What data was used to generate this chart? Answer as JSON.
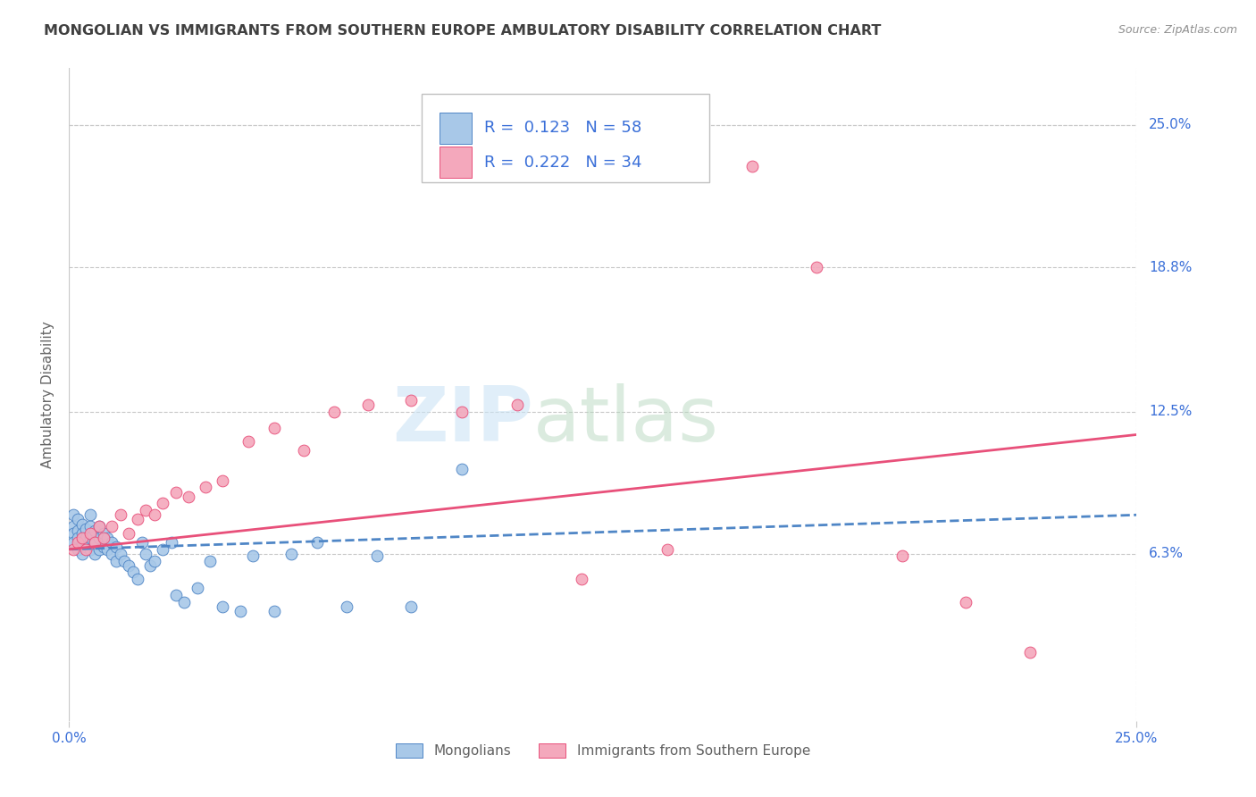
{
  "title": "MONGOLIAN VS IMMIGRANTS FROM SOUTHERN EUROPE AMBULATORY DISABILITY CORRELATION CHART",
  "source": "Source: ZipAtlas.com",
  "ylabel": "Ambulatory Disability",
  "ytick_labels": [
    "6.3%",
    "12.5%",
    "18.8%",
    "25.0%"
  ],
  "ytick_values": [
    0.063,
    0.125,
    0.188,
    0.25
  ],
  "xlim": [
    0.0,
    0.25
  ],
  "ylim": [
    -0.01,
    0.275
  ],
  "legend_label1": "Mongolians",
  "legend_label2": "Immigrants from Southern Europe",
  "R1": "0.123",
  "N1": "58",
  "R2": "0.222",
  "N2": "34",
  "color1": "#a8c8e8",
  "color2": "#f4a8bc",
  "line_color1": "#4f86c6",
  "line_color2": "#e8507a",
  "background_color": "#ffffff",
  "grid_color": "#c8c8c8",
  "title_color": "#404040",
  "source_color": "#909090",
  "label_color": "#3a6fd8",
  "mongolian_x": [
    0.001,
    0.001,
    0.001,
    0.001,
    0.002,
    0.002,
    0.002,
    0.002,
    0.003,
    0.003,
    0.003,
    0.003,
    0.004,
    0.004,
    0.004,
    0.005,
    0.005,
    0.005,
    0.005,
    0.006,
    0.006,
    0.006,
    0.007,
    0.007,
    0.007,
    0.008,
    0.008,
    0.009,
    0.009,
    0.01,
    0.01,
    0.011,
    0.011,
    0.012,
    0.013,
    0.014,
    0.015,
    0.016,
    0.017,
    0.018,
    0.019,
    0.02,
    0.022,
    0.024,
    0.025,
    0.027,
    0.03,
    0.033,
    0.036,
    0.04,
    0.043,
    0.048,
    0.052,
    0.058,
    0.065,
    0.072,
    0.08,
    0.092
  ],
  "mongolian_y": [
    0.08,
    0.075,
    0.072,
    0.068,
    0.078,
    0.073,
    0.07,
    0.065,
    0.076,
    0.072,
    0.068,
    0.063,
    0.074,
    0.07,
    0.066,
    0.08,
    0.075,
    0.07,
    0.065,
    0.073,
    0.068,
    0.063,
    0.075,
    0.07,
    0.065,
    0.072,
    0.066,
    0.07,
    0.065,
    0.068,
    0.063,
    0.066,
    0.06,
    0.063,
    0.06,
    0.058,
    0.055,
    0.052,
    0.068,
    0.063,
    0.058,
    0.06,
    0.065,
    0.068,
    0.045,
    0.042,
    0.048,
    0.06,
    0.04,
    0.038,
    0.062,
    0.038,
    0.063,
    0.068,
    0.04,
    0.062,
    0.04,
    0.1
  ],
  "southern_europe_x": [
    0.001,
    0.002,
    0.003,
    0.004,
    0.005,
    0.006,
    0.007,
    0.008,
    0.01,
    0.012,
    0.014,
    0.016,
    0.018,
    0.02,
    0.022,
    0.025,
    0.028,
    0.032,
    0.036,
    0.042,
    0.048,
    0.055,
    0.062,
    0.07,
    0.08,
    0.092,
    0.105,
    0.12,
    0.14,
    0.16,
    0.175,
    0.195,
    0.21,
    0.225
  ],
  "southern_europe_y": [
    0.065,
    0.068,
    0.07,
    0.065,
    0.072,
    0.068,
    0.075,
    0.07,
    0.075,
    0.08,
    0.072,
    0.078,
    0.082,
    0.08,
    0.085,
    0.09,
    0.088,
    0.092,
    0.095,
    0.112,
    0.118,
    0.108,
    0.125,
    0.128,
    0.13,
    0.125,
    0.128,
    0.052,
    0.065,
    0.232,
    0.188,
    0.062,
    0.042,
    0.02
  ],
  "zip_color": "#cce4f5",
  "atlas_color": "#b8d8c0"
}
